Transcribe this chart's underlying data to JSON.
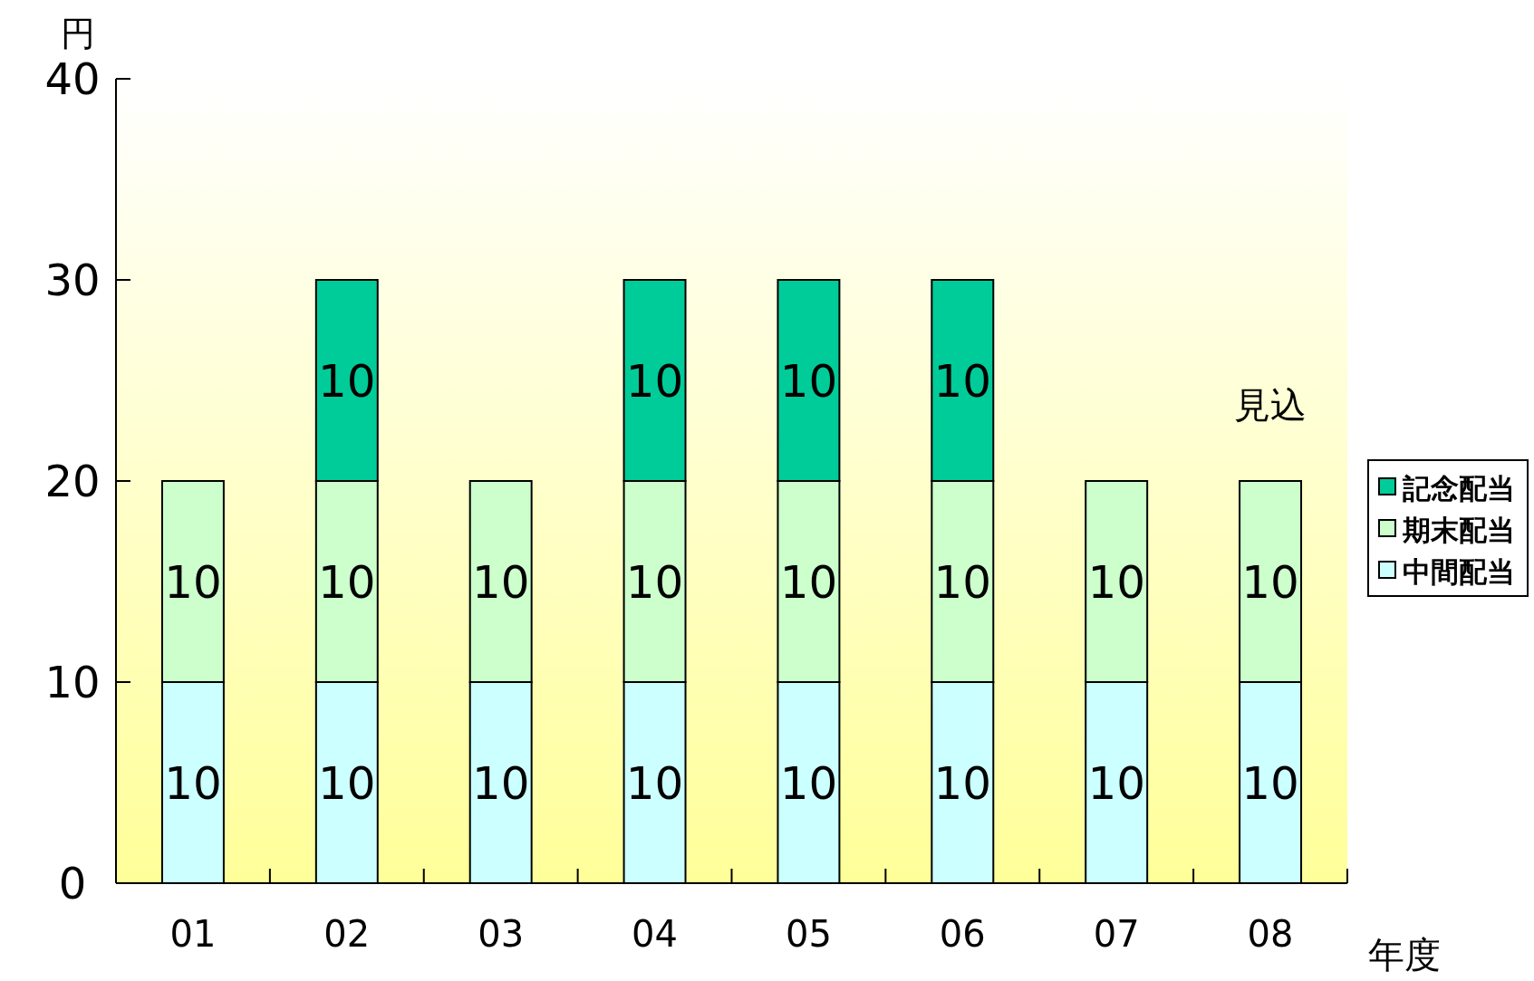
{
  "chart_data": {
    "type": "bar",
    "stacked": true,
    "ylabel": "円",
    "xlabel": "年度",
    "categories": [
      "01",
      "02",
      "03",
      "04",
      "05",
      "06",
      "07",
      "08"
    ],
    "series": [
      {
        "name": "中間配当",
        "color": "#ccffff",
        "values": [
          10,
          10,
          10,
          10,
          10,
          10,
          10,
          10
        ]
      },
      {
        "name": "期末配当",
        "color": "#ccffcc",
        "values": [
          10,
          10,
          10,
          10,
          10,
          10,
          10,
          10
        ]
      },
      {
        "name": "記念配当",
        "color": "#00cc99",
        "values": [
          null,
          10,
          null,
          10,
          10,
          10,
          null,
          null
        ]
      }
    ],
    "ylim": [
      0,
      40
    ],
    "yticks": [
      0,
      10,
      20,
      30,
      40
    ],
    "data_labels": true,
    "legend": "right",
    "grid": false,
    "annotations": [
      {
        "text": "見込",
        "x": "08",
        "y": 20
      }
    ]
  }
}
